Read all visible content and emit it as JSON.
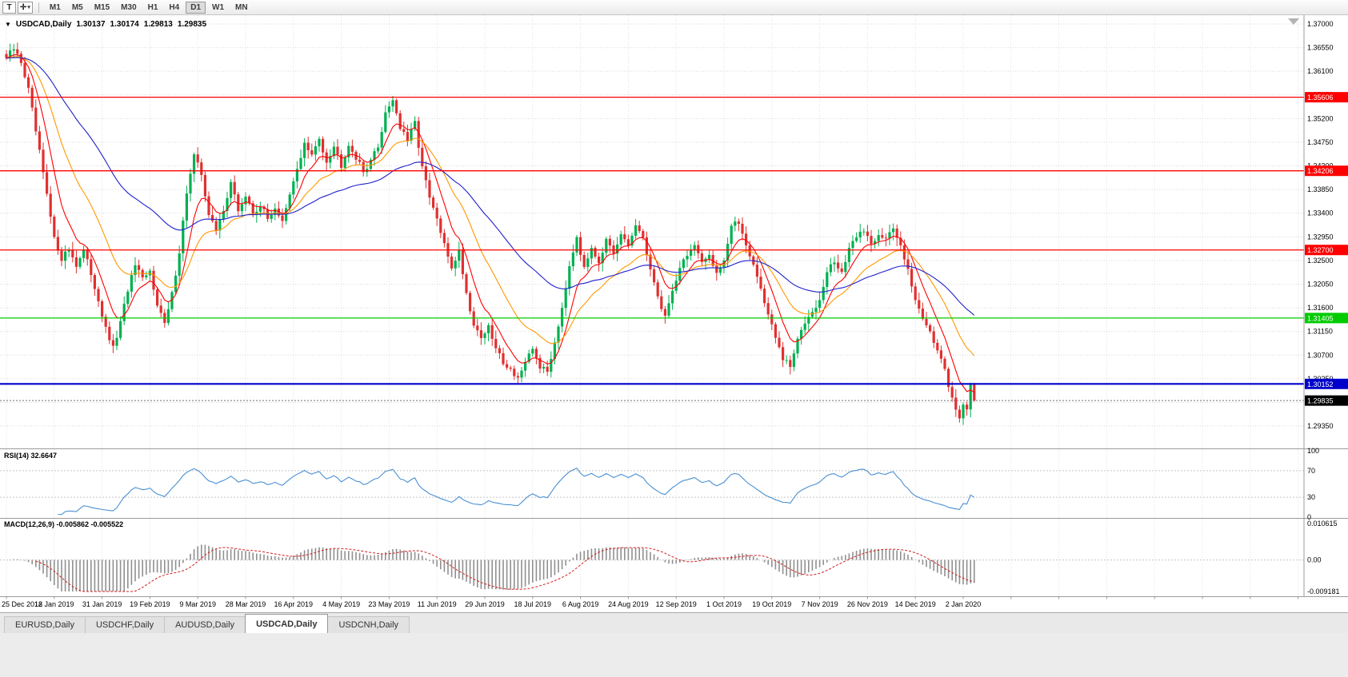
{
  "toolbar": {
    "text_tool_label": "T",
    "crosshair_glyph": "✛",
    "dropdown_glyph": "▾",
    "timeframes": [
      {
        "label": "M1"
      },
      {
        "label": "M5"
      },
      {
        "label": "M15"
      },
      {
        "label": "M30"
      },
      {
        "label": "H1"
      },
      {
        "label": "H4"
      },
      {
        "label": "D1",
        "active": true
      },
      {
        "label": "W1"
      },
      {
        "label": "MN"
      }
    ]
  },
  "chart_header": {
    "triangle_glyph": "▼",
    "symbol_label": "USDCAD,Daily",
    "open": "1.30137",
    "high": "1.30174",
    "low": "1.29813",
    "close": "1.29835"
  },
  "chart_data": {
    "type": "candlestick",
    "title": "USDCAD,Daily",
    "symbol": "USDCAD",
    "timeframe": "Daily",
    "count": 264,
    "candles_per_tick": 13,
    "x_dates": [
      "25 Dec 2018",
      "12 Jan 2019",
      "31 Jan 2019",
      "19 Feb 2019",
      "9 Mar 2019",
      "28 Mar 2019",
      "16 Apr 2019",
      "4 May 2019",
      "23 May 2019",
      "11 Jun 2019",
      "29 Jun 2019",
      "18 Jul 2019",
      "6 Aug 2019",
      "24 Aug 2019",
      "12 Sep 2019",
      "1 Oct 2019",
      "19 Oct 2019",
      "7 Nov 2019",
      "26 Nov 2019",
      "14 Dec 2019",
      "2 Jan 2020"
    ],
    "ylim": [
      1.2894,
      1.37106
    ],
    "price_ticks": [
      "1.37000",
      "1.36550",
      "1.36100",
      "1.35650",
      "1.35200",
      "1.34750",
      "1.34300",
      "1.33850",
      "1.33400",
      "1.32950",
      "1.32500",
      "1.32050",
      "1.31600",
      "1.31150",
      "1.30700",
      "1.30250",
      "1.29800",
      "1.29350"
    ],
    "colors": {
      "up": "#00b050",
      "down": "#e03030",
      "background": "#ffffff",
      "grid": "#d9d9d9"
    },
    "moving_averages": [
      {
        "period": 8,
        "color": "#ff0000"
      },
      {
        "period": 21,
        "color": "#ff9900"
      },
      {
        "period": 55,
        "color": "#2020cc"
      }
    ],
    "levels": [
      {
        "value": 1.35606,
        "label": "1.35606",
        "color": "#ff0000",
        "width": 1.3
      },
      {
        "value": 1.34206,
        "label": "1.34206",
        "color": "#ff0000",
        "width": 1.3
      },
      {
        "value": 1.327,
        "label": "1.32700",
        "color": "#ff0000",
        "width": 1.3
      },
      {
        "value": 1.31405,
        "label": "1.31405",
        "color": "#00cc00",
        "width": 1.3
      },
      {
        "value": 1.30152,
        "label": "1.30152",
        "color": "#0000cc",
        "width": 2.2
      }
    ],
    "current_price": {
      "value": 1.29835,
      "label": "1.29835"
    },
    "last_candle": {
      "open": 1.30137,
      "high": 1.30174,
      "low": 1.29813,
      "close": 1.29835
    },
    "close_anchors": [
      [
        0,
        1.3635
      ],
      [
        2,
        1.3652
      ],
      [
        4,
        1.3628
      ],
      [
        6,
        1.3575
      ],
      [
        8,
        1.3495
      ],
      [
        10,
        1.3415
      ],
      [
        13,
        1.329
      ],
      [
        15,
        1.3255
      ],
      [
        17,
        1.3272
      ],
      [
        19,
        1.3242
      ],
      [
        21,
        1.3268
      ],
      [
        23,
        1.3225
      ],
      [
        25,
        1.3175
      ],
      [
        27,
        1.3118
      ],
      [
        29,
        1.3082
      ],
      [
        31,
        1.313
      ],
      [
        33,
        1.3195
      ],
      [
        35,
        1.324
      ],
      [
        37,
        1.3212
      ],
      [
        39,
        1.3228
      ],
      [
        41,
        1.317
      ],
      [
        43,
        1.3128
      ],
      [
        45,
        1.3185
      ],
      [
        47,
        1.3268
      ],
      [
        49,
        1.338
      ],
      [
        51,
        1.3448
      ],
      [
        53,
        1.3415
      ],
      [
        55,
        1.3338
      ],
      [
        57,
        1.3305
      ],
      [
        59,
        1.3348
      ],
      [
        61,
        1.3398
      ],
      [
        63,
        1.3345
      ],
      [
        65,
        1.3372
      ],
      [
        67,
        1.3338
      ],
      [
        69,
        1.3356
      ],
      [
        71,
        1.3328
      ],
      [
        73,
        1.3352
      ],
      [
        75,
        1.3322
      ],
      [
        77,
        1.3372
      ],
      [
        79,
        1.3425
      ],
      [
        81,
        1.3472
      ],
      [
        83,
        1.3448
      ],
      [
        85,
        1.3482
      ],
      [
        87,
        1.344
      ],
      [
        89,
        1.3468
      ],
      [
        91,
        1.3432
      ],
      [
        93,
        1.3472
      ],
      [
        95,
        1.3446
      ],
      [
        97,
        1.3418
      ],
      [
        99,
        1.3442
      ],
      [
        101,
        1.3465
      ],
      [
        103,
        1.3532
      ],
      [
        105,
        1.3558
      ],
      [
        107,
        1.3502
      ],
      [
        109,
        1.3478
      ],
      [
        111,
        1.3512
      ],
      [
        113,
        1.3428
      ],
      [
        115,
        1.3368
      ],
      [
        117,
        1.3328
      ],
      [
        119,
        1.3278
      ],
      [
        121,
        1.3238
      ],
      [
        123,
        1.3268
      ],
      [
        125,
        1.3188
      ],
      [
        127,
        1.3128
      ],
      [
        129,
        1.3105
      ],
      [
        131,
        1.3122
      ],
      [
        133,
        1.3082
      ],
      [
        135,
        1.3058
      ],
      [
        137,
        1.3042
      ],
      [
        139,
        1.3028
      ],
      [
        141,
        1.3052
      ],
      [
        143,
        1.3082
      ],
      [
        145,
        1.3048
      ],
      [
        147,
        1.3038
      ],
      [
        149,
        1.3095
      ],
      [
        151,
        1.3162
      ],
      [
        153,
        1.3242
      ],
      [
        155,
        1.3298
      ],
      [
        157,
        1.3232
      ],
      [
        159,
        1.3278
      ],
      [
        161,
        1.3248
      ],
      [
        163,
        1.3288
      ],
      [
        165,
        1.3258
      ],
      [
        167,
        1.3298
      ],
      [
        169,
        1.3278
      ],
      [
        171,
        1.3318
      ],
      [
        173,
        1.3288
      ],
      [
        175,
        1.3238
      ],
      [
        177,
        1.3178
      ],
      [
        179,
        1.3145
      ],
      [
        181,
        1.3192
      ],
      [
        183,
        1.3238
      ],
      [
        185,
        1.3262
      ],
      [
        187,
        1.3278
      ],
      [
        189,
        1.3242
      ],
      [
        191,
        1.3262
      ],
      [
        193,
        1.3228
      ],
      [
        195,
        1.3252
      ],
      [
        197,
        1.3315
      ],
      [
        199,
        1.3322
      ],
      [
        201,
        1.3282
      ],
      [
        203,
        1.3242
      ],
      [
        205,
        1.3196
      ],
      [
        207,
        1.3148
      ],
      [
        209,
        1.3102
      ],
      [
        211,
        1.3062
      ],
      [
        213,
        1.3048
      ],
      [
        215,
        1.3098
      ],
      [
        217,
        1.3135
      ],
      [
        219,
        1.3158
      ],
      [
        221,
        1.3172
      ],
      [
        223,
        1.3228
      ],
      [
        225,
        1.3248
      ],
      [
        227,
        1.3228
      ],
      [
        229,
        1.3268
      ],
      [
        231,
        1.3298
      ],
      [
        233,
        1.3308
      ],
      [
        235,
        1.3282
      ],
      [
        237,
        1.3302
      ],
      [
        239,
        1.3292
      ],
      [
        241,
        1.3308
      ],
      [
        243,
        1.3278
      ],
      [
        245,
        1.3238
      ],
      [
        247,
        1.3172
      ],
      [
        249,
        1.3142
      ],
      [
        251,
        1.3118
      ],
      [
        253,
        1.3078
      ],
      [
        255,
        1.3038
      ],
      [
        257,
        1.2988
      ],
      [
        259,
        1.2952
      ],
      [
        260,
        1.2978
      ],
      [
        261,
        1.2962
      ],
      [
        262,
        1.30137
      ],
      [
        263,
        1.29835
      ]
    ],
    "subcharts": [
      {
        "type": "line",
        "name": "RSI",
        "label": "RSI(14) 32.6647",
        "period": 14,
        "color": "#4a90d2",
        "levels": [
          70,
          30
        ],
        "range": [
          0,
          100
        ],
        "ticks": [
          [
            "100",
            100
          ],
          [
            "70",
            70
          ],
          [
            "30",
            30
          ],
          [
            "0",
            0
          ]
        ],
        "current": 32.6647
      },
      {
        "type": "histogram+line",
        "name": "MACD",
        "label": "MACD(12,26,9) -0.005862 -0.005522",
        "params": [
          12,
          26,
          9
        ],
        "histogram_color": "#909090",
        "signal_color": "#d02020",
        "range": [
          -0.009181,
          0.010615
        ],
        "ticks": [
          [
            "0.010615",
            0.010615
          ],
          [
            "0.00",
            0
          ],
          [
            "-0.009181",
            -0.009181
          ]
        ],
        "current_macd": -0.005862,
        "current_signal": -0.005522
      }
    ]
  },
  "tabs": [
    {
      "label": "EURUSD,Daily"
    },
    {
      "label": "USDCHF,Daily"
    },
    {
      "label": "AUDUSD,Daily"
    },
    {
      "label": "USDCAD,Daily",
      "active": true
    },
    {
      "label": "USDCNH,Daily"
    }
  ]
}
